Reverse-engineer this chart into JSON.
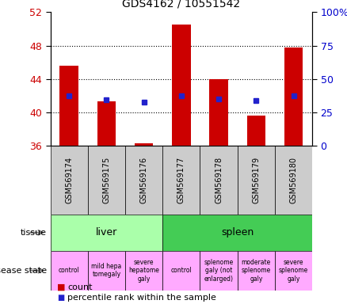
{
  "title": "GDS4162 / 10551542",
  "samples": [
    "GSM569174",
    "GSM569175",
    "GSM569176",
    "GSM569177",
    "GSM569178",
    "GSM569179",
    "GSM569180"
  ],
  "counts": [
    45.6,
    41.3,
    36.3,
    50.5,
    44.0,
    39.6,
    47.8
  ],
  "percentile_left_vals": [
    42.0,
    41.5,
    41.2,
    42.0,
    41.6,
    41.4,
    42.0
  ],
  "ylim_left": [
    36,
    52
  ],
  "yticks_left": [
    36,
    40,
    44,
    48,
    52
  ],
  "ylim_right": [
    0,
    100
  ],
  "yticks_right": [
    0,
    25,
    50,
    75,
    100
  ],
  "bar_color": "#cc0000",
  "dot_color": "#2222cc",
  "base": 36,
  "tissue_groups": [
    {
      "label": "liver",
      "span": [
        0,
        3
      ],
      "color": "#aaffaa"
    },
    {
      "label": "spleen",
      "span": [
        3,
        7
      ],
      "color": "#33cc55"
    }
  ],
  "disease_states": [
    {
      "label": "control",
      "span": [
        0,
        1
      ]
    },
    {
      "label": "mild hepa\ntomegaly",
      "span": [
        1,
        2
      ]
    },
    {
      "label": "severe\nhepatome\ngaly",
      "span": [
        2,
        3
      ]
    },
    {
      "label": "control",
      "span": [
        3,
        4
      ]
    },
    {
      "label": "splenome\ngaly (not\nenlarged)",
      "span": [
        4,
        5
      ]
    },
    {
      "label": "moderate\nsplenome\ngaly",
      "span": [
        5,
        6
      ]
    },
    {
      "label": "severe\nsplenome\ngaly",
      "span": [
        6,
        7
      ]
    }
  ],
  "disease_state_color": "#ffaaff",
  "tick_label_color": "#cc0000",
  "right_tick_color": "#0000cc",
  "legend_labels": [
    "count",
    "percentile rank within the sample"
  ]
}
